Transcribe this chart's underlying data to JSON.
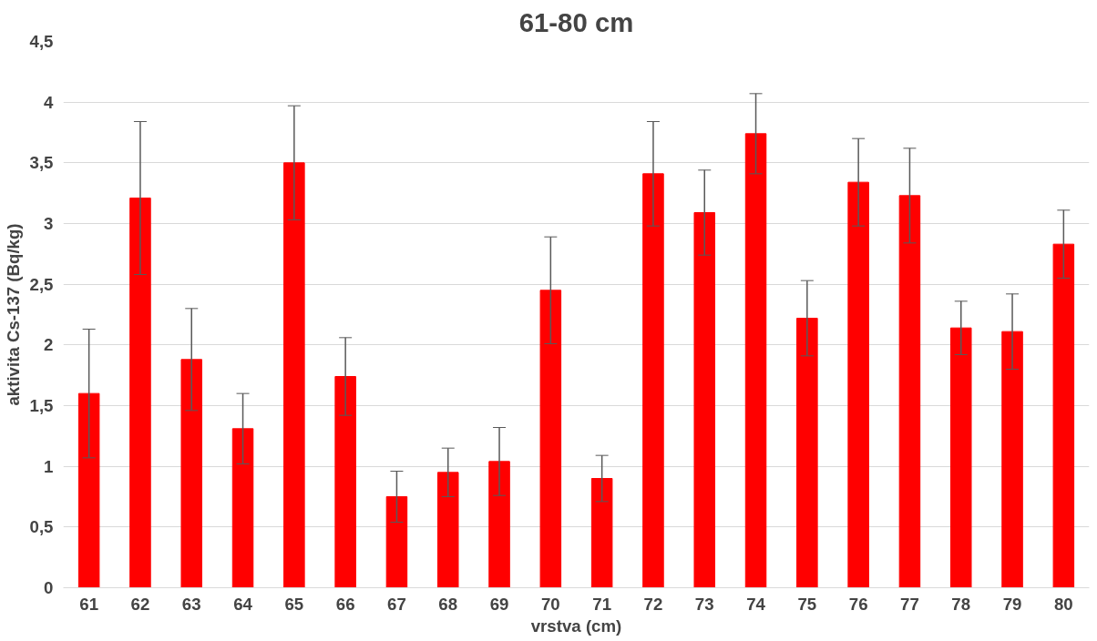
{
  "chart_data": {
    "type": "bar",
    "title": "61-80 cm",
    "xlabel": "vrstva (cm)",
    "ylabel": "aktivita Cs-137 (Bq/kg)",
    "categories": [
      "61",
      "62",
      "63",
      "64",
      "65",
      "66",
      "67",
      "68",
      "69",
      "70",
      "71",
      "72",
      "73",
      "74",
      "75",
      "76",
      "77",
      "78",
      "79",
      "80"
    ],
    "values": [
      1.6,
      3.21,
      1.88,
      1.31,
      3.5,
      1.74,
      0.75,
      0.95,
      1.04,
      2.45,
      0.9,
      3.41,
      3.09,
      3.74,
      2.22,
      3.34,
      3.23,
      2.14,
      2.11,
      2.83
    ],
    "errors": [
      0.53,
      0.63,
      0.42,
      0.29,
      0.47,
      0.32,
      0.21,
      0.2,
      0.28,
      0.44,
      0.19,
      0.43,
      0.35,
      0.33,
      0.31,
      0.36,
      0.39,
      0.22,
      0.31,
      0.28
    ],
    "color": "#ff0000",
    "ylim": [
      0,
      4.5
    ],
    "yticks": [
      0,
      {
        "value": 0.5,
        "label": "0,5"
      },
      1,
      {
        "value": 1.5,
        "label": "1,5"
      },
      2,
      {
        "value": 2.5,
        "label": "2,5"
      },
      3,
      {
        "value": 3.5,
        "label": "3,5"
      },
      4,
      {
        "value": 4.5,
        "label": "4,5"
      }
    ],
    "grid": "y"
  }
}
